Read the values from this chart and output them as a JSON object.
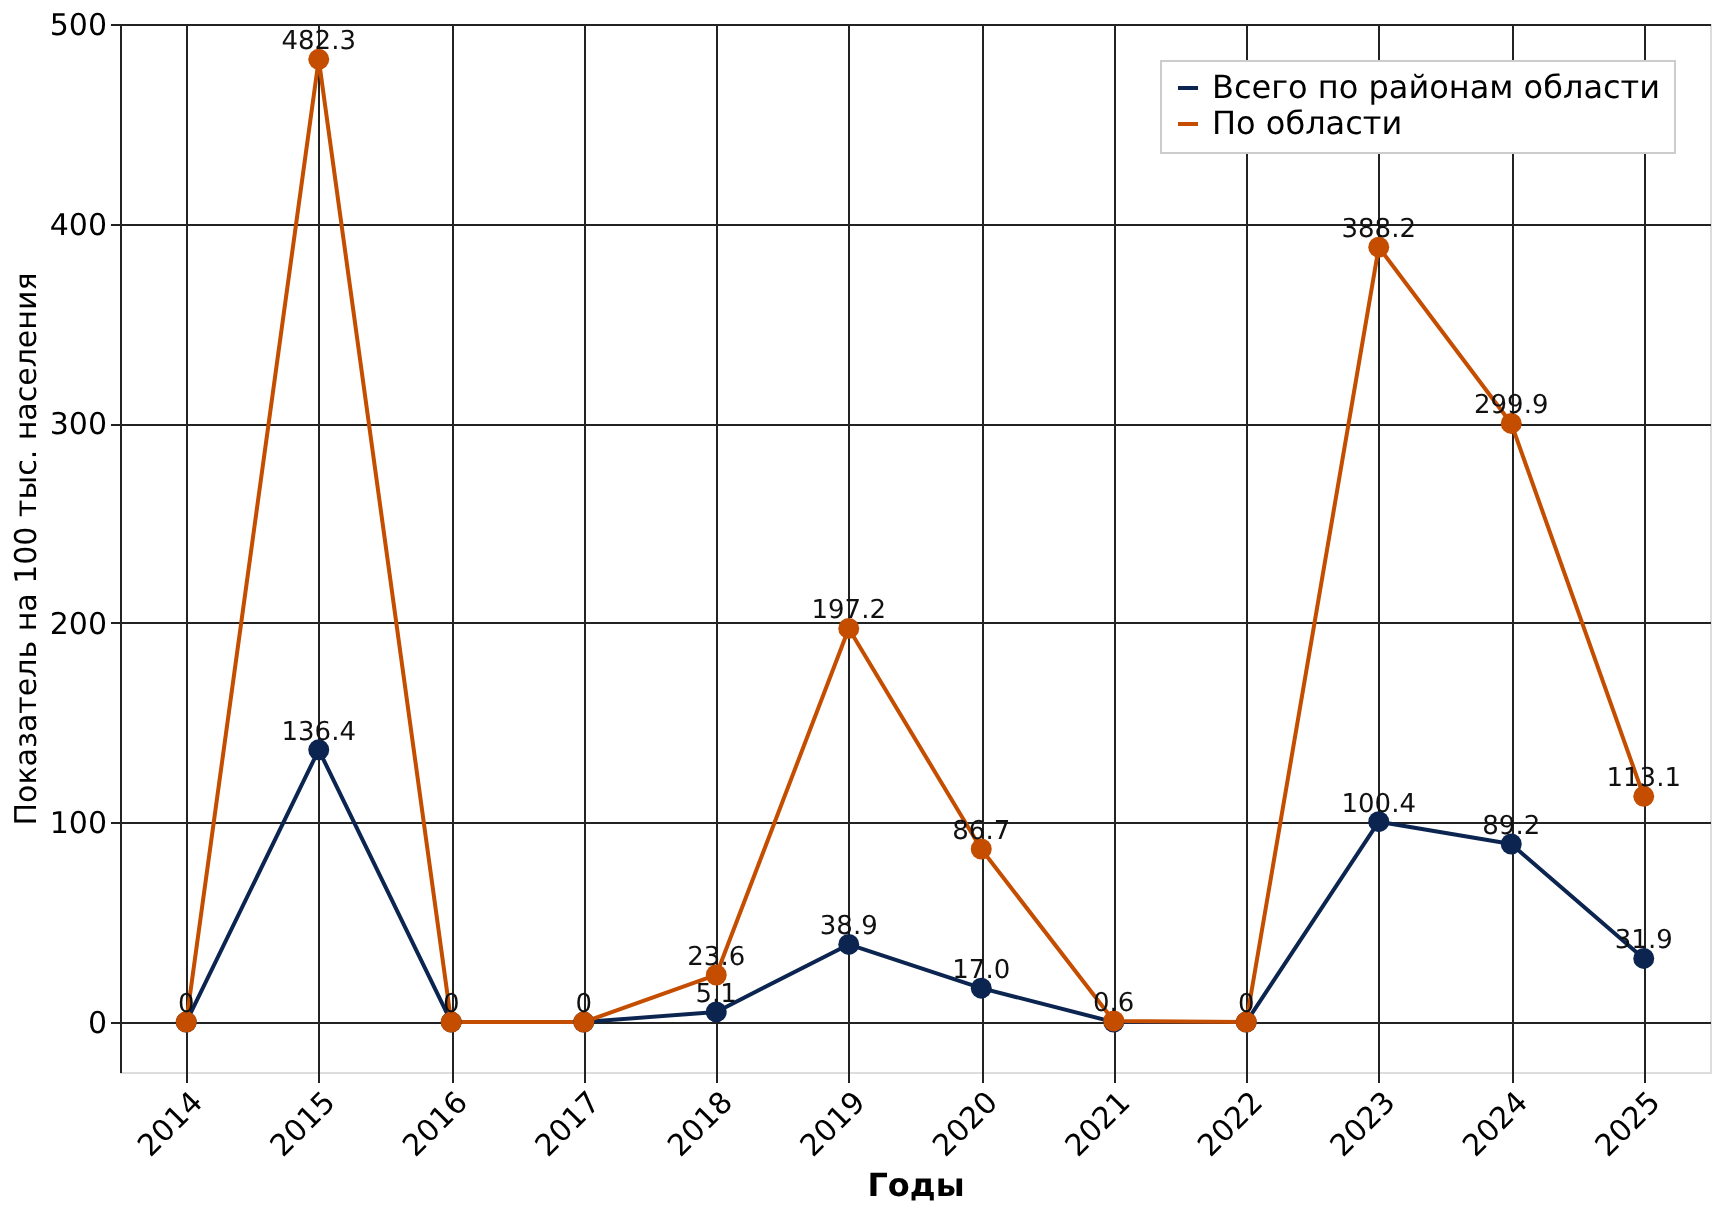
{
  "chart_data": {
    "type": "line",
    "xlabel": "Годы",
    "ylabel": "Показатель на 100 тыс. населения",
    "categories": [
      "2014",
      "2015",
      "2016",
      "2017",
      "2018",
      "2019",
      "2020",
      "2021",
      "2022",
      "2023",
      "2024",
      "2025"
    ],
    "series": [
      {
        "name": "Всего по районам области",
        "color": "#0b2550",
        "values": [
          0,
          136.4,
          0,
          0,
          5.1,
          38.9,
          17.0,
          0,
          0,
          100.4,
          89.2,
          31.9
        ],
        "value_labels": [
          null,
          "136.4",
          null,
          null,
          "5.1",
          "38.9",
          "17.0",
          null,
          null,
          "100.4",
          "89.2",
          "31.9"
        ]
      },
      {
        "name": "По области",
        "color": "#c44d00",
        "values": [
          0,
          482.3,
          0,
          0,
          23.6,
          197.2,
          86.7,
          0.6,
          0,
          388.2,
          299.9,
          113.1
        ],
        "value_labels": [
          "0",
          "482.3",
          "0",
          "0",
          "23.6",
          "197.2",
          "86.7",
          "0.6",
          "0",
          "388.2",
          "299.9",
          "113.1"
        ]
      }
    ],
    "ylim": [
      -25,
      500
    ],
    "yticks": [
      0,
      100,
      200,
      300,
      400,
      500
    ],
    "grid": true,
    "legend": "top right",
    "marker": "circle",
    "line_style": "solid"
  }
}
